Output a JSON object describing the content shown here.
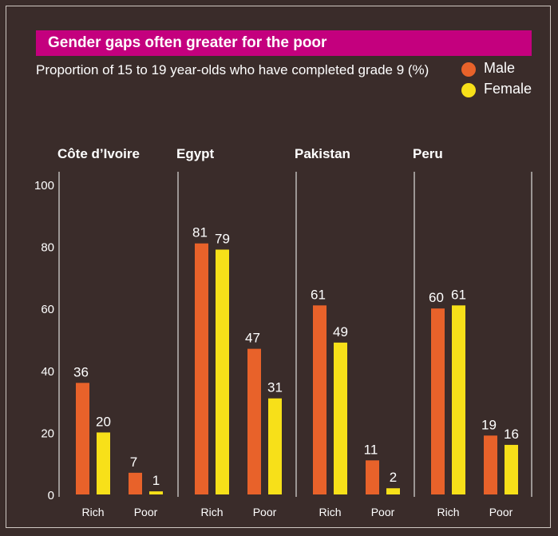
{
  "colors": {
    "background": "#3a2c2a",
    "title_bar": "#c4007e",
    "male": "#e8622a",
    "female": "#f7e019",
    "text": "#ffffff",
    "gridline": "#ffffff"
  },
  "legend": [
    {
      "label": "Male",
      "color": "#e8622a"
    },
    {
      "label": "Female",
      "color": "#f7e019"
    }
  ],
  "chart_data": {
    "type": "bar",
    "title": "Gender gaps often greater for the poor",
    "subtitle": "Proportion of 15 to 19 year-olds who have completed grade 9 (%)",
    "ylim": [
      0,
      100
    ],
    "yticks": [
      0,
      20,
      40,
      60,
      80,
      100
    ],
    "categories": [
      "Rich",
      "Poor"
    ],
    "legend_position": "top-right",
    "groups": [
      {
        "name": "Côte d’Ivoire",
        "male": [
          36,
          7
        ],
        "female": [
          20,
          1
        ]
      },
      {
        "name": "Egypt",
        "male": [
          81,
          47
        ],
        "female": [
          79,
          31
        ]
      },
      {
        "name": "Pakistan",
        "male": [
          61,
          11
        ],
        "female": [
          49,
          2
        ]
      },
      {
        "name": "Peru",
        "male": [
          60,
          19
        ],
        "female": [
          61,
          16
        ]
      }
    ]
  }
}
